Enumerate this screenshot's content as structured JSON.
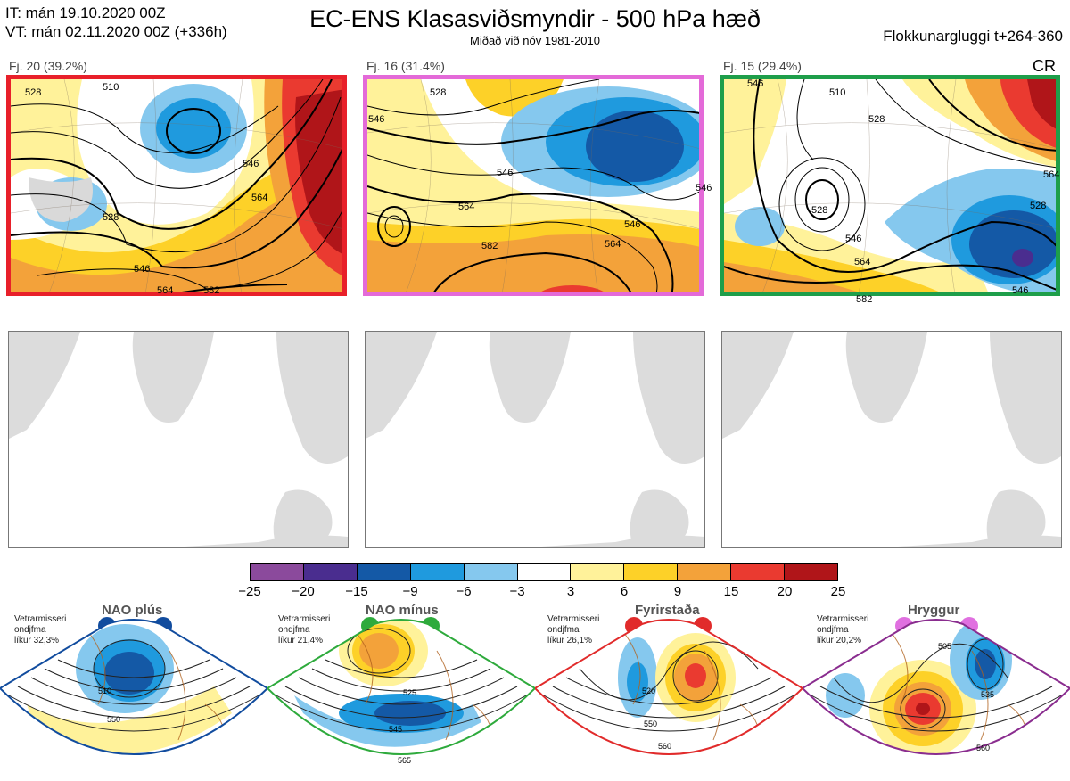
{
  "header": {
    "it_line": "IT: mán 19.10.2020 00Z",
    "vt_line": "VT: mán 02.11.2020 00Z  (+336h)",
    "title": "EC-ENS Klasasviðsmyndir - 500 hPa hæð",
    "subtitle": "Miðað við nóv 1981-2010",
    "window": "Flokkunargluggi t+264-360",
    "cr": "CR"
  },
  "clusters": [
    {
      "label": "Fj. 20 (39.2%)",
      "border": "#e8202a",
      "contours": [
        "528",
        "510",
        "528",
        "546",
        "564",
        "546",
        "564",
        "582"
      ]
    },
    {
      "label": "Fj. 16 (31.4%)",
      "border": "#e36ad8",
      "contours": [
        "546",
        "528",
        "546",
        "564",
        "546",
        "582",
        "564",
        "546"
      ]
    },
    {
      "label": "Fj. 15 (29.4%)",
      "border": "#1e9e4a",
      "contours": [
        "546",
        "510",
        "528",
        "528",
        "528",
        "546",
        "564",
        "546",
        "582",
        "564"
      ]
    }
  ],
  "colorbar": {
    "colors": [
      "#8b4a9c",
      "#4a2d8f",
      "#1459a6",
      "#1f9ade",
      "#85c8ee",
      "#ffffff",
      "#fff29a",
      "#fdd128",
      "#f3a23a",
      "#ea3a30",
      "#b01519"
    ],
    "ticks": [
      "−25",
      "−20",
      "−15",
      "−9",
      "−6",
      "−3",
      "3",
      "6",
      "9",
      "15",
      "20",
      "25"
    ]
  },
  "regimes": [
    {
      "title": "NAO plús",
      "note": "Vetrarmisseri\nondjfma\nlíkur 32,3%",
      "border": "#114c9e",
      "dot": "#114c9e",
      "contours": [
        "510",
        "550"
      ]
    },
    {
      "title": "NAO mínus",
      "note": "Vetrarmisseri\nondjfma\nlíkur 21,4%",
      "border": "#2eaa3c",
      "dot": "#2eaa3c",
      "contours": [
        "525",
        "545",
        "565"
      ]
    },
    {
      "title": "Fyrirstaða",
      "note": "Vetrarmisseri\nondjfma\nlíkur 26,1%",
      "border": "#e12b2b",
      "dot": "#e12b2b",
      "contours": [
        "520",
        "550",
        "560"
      ]
    },
    {
      "title": "Hryggur",
      "note": "Vetrarmisseri\nondjfma\nlíkur 20,2%",
      "border": "#8a2d8f",
      "dot": "#e070e0",
      "contours": [
        "505",
        "535",
        "560"
      ]
    }
  ]
}
